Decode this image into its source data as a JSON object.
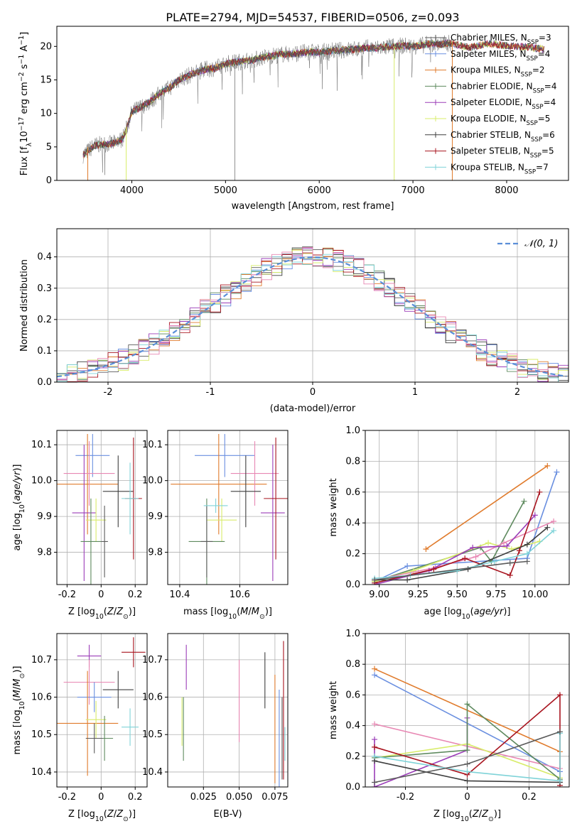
{
  "colors": {
    "chabrier_miles": "#5b5b5b",
    "salpeter_miles": "#6a8fe0",
    "kroupa_miles": "#e07b2c",
    "chabrier_elodie": "#5e8a5e",
    "salpeter_elodie": "#9b3db8",
    "kroupa_elodie": "#d8ec6a",
    "chabrier_stelib": "#3f3f3f",
    "salpeter_stelib": "#a8141f",
    "kroupa_stelib": "#7fd3d8",
    "pink": "#e887b3",
    "normal_curve": "#5b8fd8"
  },
  "chart_data": [
    {
      "id": "spectrum",
      "type": "line",
      "title": "PLATE=2794, MJD=54537, FIBERID=0506, z=0.093",
      "xlabel": "wavelength [Angstrom, rest frame]",
      "ylabel": "Flux [f",
      "ylabel_full": "Flux [fλ10⁻¹⁷ erg cm⁻² s⁻¹ A⁻¹]",
      "xlim": [
        3200,
        8660
      ],
      "ylim": [
        0,
        23
      ],
      "xticks": [
        4000,
        5000,
        6000,
        7000,
        8000
      ],
      "yticks": [
        0,
        5,
        10,
        15,
        20
      ],
      "legend_position": "top-right",
      "legend": [
        {
          "label": "Chabrier MILES, N_SSP=3",
          "color_key": "chabrier_miles"
        },
        {
          "label": "Salpeter MILES, N_SSP=4",
          "color_key": "salpeter_miles"
        },
        {
          "label": "Kroupa MILES, N_SSP=2",
          "color_key": "kroupa_miles"
        },
        {
          "label": "Chabrier ELODIE, N_SSP=4",
          "color_key": "chabrier_elodie"
        },
        {
          "label": "Salpeter ELODIE, N_SSP=4",
          "color_key": "salpeter_elodie"
        },
        {
          "label": "Kroupa ELODIE, N_SSP=5",
          "color_key": "kroupa_elodie"
        },
        {
          "label": "Chabrier STELIB, N_SSP=6",
          "color_key": "chabrier_stelib"
        },
        {
          "label": "Salpeter STELIB, N_SSP=5",
          "color_key": "salpeter_stelib"
        },
        {
          "label": "Kroupa STELIB, N_SSP=7",
          "color_key": "kroupa_stelib"
        }
      ],
      "continuum": [
        [
          3480,
          3.8
        ],
        [
          3600,
          5.2
        ],
        [
          3700,
          5.4
        ],
        [
          3800,
          5.5
        ],
        [
          3900,
          6.2
        ],
        [
          3950,
          8.0
        ],
        [
          4000,
          10.2
        ],
        [
          4100,
          11.0
        ],
        [
          4200,
          11.8
        ],
        [
          4300,
          13.0
        ],
        [
          4400,
          13.8
        ],
        [
          4500,
          15.0
        ],
        [
          4600,
          15.6
        ],
        [
          4700,
          16.2
        ],
        [
          4800,
          16.6
        ],
        [
          4900,
          16.8
        ],
        [
          5000,
          17.4
        ],
        [
          5100,
          17.6
        ],
        [
          5200,
          17.8
        ],
        [
          5300,
          18.0
        ],
        [
          5400,
          18.4
        ],
        [
          5500,
          18.6
        ],
        [
          5600,
          18.8
        ],
        [
          5700,
          18.9
        ],
        [
          5800,
          19.0
        ],
        [
          5900,
          19.2
        ],
        [
          6000,
          19.1
        ],
        [
          6100,
          19.3
        ],
        [
          6200,
          19.4
        ],
        [
          6300,
          19.5
        ],
        [
          6400,
          19.6
        ],
        [
          6500,
          19.8
        ],
        [
          6600,
          19.7
        ],
        [
          6700,
          19.9
        ],
        [
          6800,
          20.0
        ],
        [
          6900,
          20.1
        ],
        [
          7000,
          20.0
        ],
        [
          7100,
          20.2
        ],
        [
          7200,
          20.4
        ],
        [
          7300,
          20.3
        ],
        [
          7400,
          20.5
        ]
      ],
      "model_extension": [
        [
          7400,
          20.5
        ],
        [
          7600,
          19.8
        ],
        [
          7800,
          20.4
        ],
        [
          8000,
          20.1
        ],
        [
          8200,
          19.9
        ],
        [
          8400,
          19.6
        ]
      ]
    },
    {
      "id": "residuals",
      "type": "line",
      "xlabel": "(data-model)/error",
      "ylabel": "Normed distribution",
      "xlim": [
        -2.5,
        2.5
      ],
      "ylim": [
        0,
        0.49
      ],
      "xticks": [
        -2,
        -1,
        0,
        1,
        2
      ],
      "yticks": [
        0.0,
        0.1,
        0.2,
        0.3,
        0.4
      ],
      "legend_position": "top-right",
      "legend": [
        {
          "label": "𝒩(0, 1)",
          "color_key": "normal_curve"
        }
      ],
      "bin_width": 0.1
    },
    {
      "id": "age_vs_z",
      "type": "scatter",
      "xlabel": "Z [log",
      "ylabel": "age",
      "xlim": [
        -0.26,
        0.27
      ],
      "ylim": [
        9.71,
        10.14
      ],
      "xticks": [
        -0.2,
        0.0,
        0.2
      ],
      "yticks": [
        9.8,
        9.9,
        10.0,
        10.1
      ],
      "points": [
        {
          "c": "salpeter_miles",
          "x": -0.05,
          "y": 10.07,
          "xe": 0.1,
          "ye": 0.06
        },
        {
          "c": "kroupa_miles",
          "x": -0.08,
          "y": 9.99,
          "xe": 0.18,
          "ye": 0.14
        },
        {
          "c": "pink",
          "x": -0.07,
          "y": 10.02,
          "xe": 0.15,
          "ye": 0.09
        },
        {
          "c": "salpeter_elodie",
          "x": -0.1,
          "y": 9.91,
          "xe": 0.07,
          "ye": 0.19
        },
        {
          "c": "kroupa_elodie",
          "x": -0.03,
          "y": 9.89,
          "xe": 0.06,
          "ye": 0.06
        },
        {
          "c": "chabrier_elodie",
          "x": -0.06,
          "y": 9.83,
          "xe": 0.06,
          "ye": 0.12
        },
        {
          "c": "chabrier_miles",
          "x": 0.02,
          "y": 9.83,
          "xe": 0.02,
          "ye": 0.1
        },
        {
          "c": "chabrier_stelib",
          "x": 0.1,
          "y": 9.97,
          "xe": 0.09,
          "ye": 0.1
        },
        {
          "c": "salpeter_stelib",
          "x": 0.19,
          "y": 9.95,
          "xe": 0.05,
          "ye": 0.17
        },
        {
          "c": "kroupa_stelib",
          "x": 0.17,
          "y": 9.95,
          "xe": 0.05,
          "ye": 0.1
        }
      ]
    },
    {
      "id": "age_vs_mass",
      "type": "scatter",
      "xlabel": "mass [log",
      "xlim": [
        10.36,
        10.76
      ],
      "ylim": [
        9.71,
        10.14
      ],
      "xticks": [
        10.4,
        10.6
      ],
      "yticks": [
        9.8,
        9.9,
        10.0,
        10.1
      ],
      "points": [
        {
          "c": "salpeter_miles",
          "x": 10.55,
          "y": 10.07,
          "xe": 0.1,
          "ye": 0.06
        },
        {
          "c": "kroupa_miles",
          "x": 10.53,
          "y": 9.99,
          "xe": 0.16,
          "ye": 0.14
        },
        {
          "c": "pink",
          "x": 10.65,
          "y": 10.02,
          "xe": 0.08,
          "ye": 0.09
        },
        {
          "c": "salpeter_elodie",
          "x": 10.71,
          "y": 9.91,
          "xe": 0.04,
          "ye": 0.19
        },
        {
          "c": "kroupa_elodie",
          "x": 10.54,
          "y": 9.89,
          "xe": 0.05,
          "ye": 0.06
        },
        {
          "c": "chabrier_elodie",
          "x": 10.49,
          "y": 9.83,
          "xe": 0.06,
          "ye": 0.12
        },
        {
          "c": "chabrier_miles",
          "x": 10.49,
          "y": 9.83,
          "xe": 0.02,
          "ye": 0.1
        },
        {
          "c": "chabrier_stelib",
          "x": 10.62,
          "y": 9.97,
          "xe": 0.05,
          "ye": 0.1
        },
        {
          "c": "salpeter_stelib",
          "x": 10.72,
          "y": 9.95,
          "xe": 0.04,
          "ye": 0.17
        },
        {
          "c": "kroupa_stelib",
          "x": 10.52,
          "y": 9.93,
          "xe": 0.04,
          "ye": 0.02
        }
      ]
    },
    {
      "id": "weight_vs_age",
      "type": "line",
      "xlabel": "age",
      "ylabel": "mass weight",
      "xlim": [
        8.91,
        10.22
      ],
      "ylim": [
        0,
        1
      ],
      "xticks": [
        9.0,
        9.25,
        9.5,
        9.75,
        10.0
      ],
      "xtick_labels": [
        "9.00",
        "9.25",
        "9.50",
        "9.75",
        "10.00"
      ],
      "yticks": [
        0.0,
        0.2,
        0.4,
        0.6,
        0.8,
        1.0
      ],
      "series": [
        {
          "c": "kroupa_miles",
          "x": [
            9.3,
            10.08
          ],
          "y": [
            0.23,
            0.77
          ]
        },
        {
          "c": "salpeter_miles",
          "x": [
            8.97,
            9.18,
            9.95,
            10.14
          ],
          "y": [
            0.02,
            0.12,
            0.17,
            0.73
          ]
        },
        {
          "c": "chabrier_elodie",
          "x": [
            8.97,
            9.65,
            9.72,
            9.93
          ],
          "y": [
            0.02,
            0.24,
            0.15,
            0.54
          ]
        },
        {
          "c": "kroupa_elodie",
          "x": [
            8.97,
            9.22,
            9.7,
            9.85,
            10.03
          ],
          "y": [
            0.02,
            0.09,
            0.27,
            0.23,
            0.28
          ]
        },
        {
          "c": "pink",
          "x": [
            8.97,
            9.36,
            9.62,
            9.8,
            10.12
          ],
          "y": [
            0.03,
            0.11,
            0.18,
            0.27,
            0.41
          ]
        },
        {
          "c": "salpeter_elodie",
          "x": [
            8.97,
            9.32,
            9.6,
            9.82,
            10.0
          ],
          "y": [
            0.0,
            0.09,
            0.24,
            0.25,
            0.45
          ]
        },
        {
          "c": "salpeter_stelib",
          "x": [
            8.97,
            9.35,
            9.55,
            9.84,
            9.9,
            10.03
          ],
          "y": [
            0.01,
            0.1,
            0.17,
            0.06,
            0.22,
            0.6
          ]
        },
        {
          "c": "chabrier_stelib",
          "x": [
            8.97,
            9.18,
            9.57,
            9.95,
            10.08
          ],
          "y": [
            0.03,
            0.03,
            0.1,
            0.26,
            0.37
          ]
        },
        {
          "c": "kroupa_stelib",
          "x": [
            8.97,
            9.2,
            9.5,
            9.74,
            9.95,
            10.12
          ],
          "y": [
            0.04,
            0.06,
            0.09,
            0.15,
            0.2,
            0.35
          ]
        },
        {
          "c": "chabrier_miles",
          "x": [
            8.97,
            9.84,
            9.95
          ],
          "y": [
            0.03,
            0.14,
            0.15
          ]
        }
      ]
    },
    {
      "id": "mass_vs_z",
      "type": "scatter",
      "xlabel": "Z [log",
      "ylabel": "mass",
      "xlim": [
        -0.26,
        0.27
      ],
      "ylim": [
        10.36,
        10.77
      ],
      "xticks": [
        -0.2,
        0.0,
        0.2
      ],
      "yticks": [
        10.4,
        10.5,
        10.6,
        10.7
      ],
      "points": [
        {
          "c": "salpeter_elodie",
          "x": -0.07,
          "y": 10.71,
          "xe": 0.07,
          "ye": 0.03
        },
        {
          "c": "pink",
          "x": -0.07,
          "y": 10.64,
          "xe": 0.15,
          "ye": 0.06
        },
        {
          "c": "salpeter_miles",
          "x": -0.04,
          "y": 10.6,
          "xe": 0.1,
          "ye": 0.04
        },
        {
          "c": "kroupa_miles",
          "x": -0.08,
          "y": 10.53,
          "xe": 0.18,
          "ye": 0.14
        },
        {
          "c": "kroupa_elodie",
          "x": -0.03,
          "y": 10.54,
          "xe": 0.06,
          "ye": 0.05
        },
        {
          "c": "chabrier_elodie",
          "x": 0.02,
          "y": 10.49,
          "xe": 0.05,
          "ye": 0.06
        },
        {
          "c": "chabrier_miles",
          "x": -0.04,
          "y": 10.49,
          "xe": 0.05,
          "ye": 0.04
        },
        {
          "c": "chabrier_stelib",
          "x": 0.1,
          "y": 10.62,
          "xe": 0.09,
          "ye": 0.05
        },
        {
          "c": "salpeter_stelib",
          "x": 0.19,
          "y": 10.72,
          "xe": 0.07,
          "ye": 0.04
        },
        {
          "c": "kroupa_stelib",
          "x": 0.17,
          "y": 10.52,
          "xe": 0.05,
          "ye": 0.05
        }
      ]
    },
    {
      "id": "mass_vs_ebv",
      "type": "scatter",
      "xlabel": "E(B-V)",
      "xlim": [
        0.0,
        0.084
      ],
      "ylim": [
        10.36,
        10.77
      ],
      "xticks": [
        0.025,
        0.05,
        0.075
      ],
      "xtick_labels": [
        "0.025",
        "0.050",
        "0.075"
      ],
      "yticks": [
        10.4,
        10.5,
        10.6,
        10.7
      ],
      "bars": [
        {
          "c": "kroupa_elodie",
          "x": 0.01,
          "ylo": 10.47,
          "yhi": 10.6
        },
        {
          "c": "chabrier_elodie",
          "x": 0.011,
          "ylo": 10.43,
          "yhi": 10.6
        },
        {
          "c": "salpeter_elodie",
          "x": 0.013,
          "ylo": 10.62,
          "yhi": 10.74
        },
        {
          "c": "pink",
          "x": 0.05,
          "ylo": 10.48,
          "yhi": 10.7
        },
        {
          "c": "chabrier_stelib",
          "x": 0.068,
          "ylo": 10.57,
          "yhi": 10.72
        },
        {
          "c": "kroupa_miles",
          "x": 0.075,
          "ylo": 10.37,
          "yhi": 10.66
        },
        {
          "c": "salpeter_miles",
          "x": 0.078,
          "ylo": 10.36,
          "yhi": 10.62
        },
        {
          "c": "chabrier_miles",
          "x": 0.08,
          "ylo": 10.38,
          "yhi": 10.6
        },
        {
          "c": "salpeter_stelib",
          "x": 0.081,
          "ylo": 10.38,
          "yhi": 10.75
        },
        {
          "c": "kroupa_stelib",
          "x": 0.082,
          "ylo": 10.43,
          "yhi": 10.52
        }
      ]
    },
    {
      "id": "weight_vs_z",
      "type": "line",
      "xlabel": "Z [log",
      "ylabel": "mass weight",
      "xlim": [
        -0.33,
        0.33
      ],
      "ylim": [
        0,
        1
      ],
      "xticks": [
        -0.2,
        0.0,
        0.2
      ],
      "yticks": [
        0.0,
        0.2,
        0.4,
        0.6,
        0.8,
        1.0
      ],
      "series": [
        {
          "c": "kroupa_miles",
          "x": [
            -0.3,
            0.3
          ],
          "y": [
            0.77,
            0.23
          ]
        },
        {
          "c": "salpeter_miles",
          "x": [
            -0.3,
            0.3
          ],
          "y": [
            0.73,
            0.1
          ]
        },
        {
          "c": "pink",
          "x": [
            -0.3,
            0.3
          ],
          "y": [
            0.41,
            0.12
          ]
        },
        {
          "c": "salpeter_elodie",
          "x": [
            -0.3,
            -0.3,
            0.0,
            0.0
          ],
          "y": [
            0.31,
            0.0,
            0.24,
            0.45
          ]
        },
        {
          "c": "kroupa_elodie",
          "x": [
            -0.3,
            0.0,
            0.3
          ],
          "y": [
            0.19,
            0.28,
            0.06
          ]
        },
        {
          "c": "chabrier_elodie",
          "x": [
            -0.3,
            0.0,
            0.0,
            0.3
          ],
          "y": [
            0.19,
            0.24,
            0.54,
            0.05
          ]
        },
        {
          "c": "salpeter_stelib",
          "x": [
            -0.3,
            0.0,
            0.3,
            0.3
          ],
          "y": [
            0.26,
            0.08,
            0.6,
            0.01
          ]
        },
        {
          "c": "chabrier_stelib",
          "x": [
            -0.3,
            0.0,
            0.3
          ],
          "y": [
            0.17,
            0.04,
            0.03
          ]
        },
        {
          "c": "kroupa_stelib",
          "x": [
            -0.3,
            0.0,
            0.3,
            0.3
          ],
          "y": [
            0.2,
            0.1,
            0.04,
            0.35
          ]
        },
        {
          "c": "chabrier_miles",
          "x": [
            -0.3,
            0.0,
            0.3
          ],
          "y": [
            0.03,
            0.15,
            0.36
          ]
        }
      ]
    }
  ]
}
